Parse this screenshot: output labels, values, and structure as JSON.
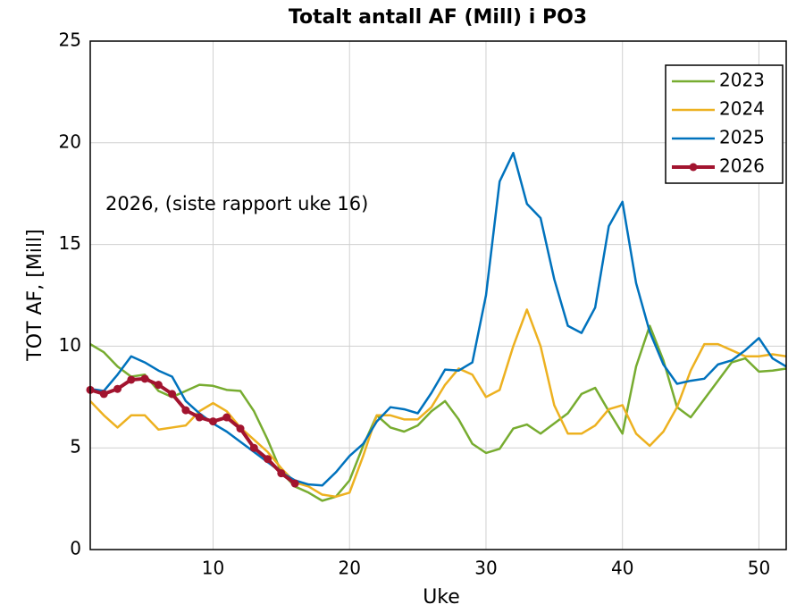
{
  "chart_data": {
    "type": "line",
    "title": "Totalt antall AF (Mill) i PO3",
    "x_label": "Uke",
    "y_label": "TOT AF, [Mill]",
    "annotation": "2026, (siste rapport uke 16)",
    "x": [
      1,
      2,
      3,
      4,
      5,
      6,
      7,
      8,
      9,
      10,
      11,
      12,
      13,
      14,
      15,
      16,
      17,
      18,
      19,
      20,
      21,
      22,
      23,
      24,
      25,
      26,
      27,
      28,
      29,
      30,
      31,
      32,
      33,
      34,
      35,
      36,
      37,
      38,
      39,
      40,
      41,
      42,
      43,
      44,
      45,
      46,
      47,
      48,
      49,
      50,
      51,
      52
    ],
    "series": [
      {
        "name": "2023",
        "color": "#77ac30",
        "values": [
          10.1,
          9.7,
          9.0,
          8.5,
          8.6,
          7.8,
          7.5,
          7.8,
          8.1,
          8.05,
          7.85,
          7.8,
          6.8,
          5.4,
          3.8,
          3.1,
          2.8,
          2.4,
          2.6,
          3.4,
          5.1,
          6.6,
          6.0,
          5.8,
          6.1,
          6.8,
          7.3,
          6.4,
          5.2,
          4.75,
          4.95,
          5.95,
          6.15,
          5.7,
          6.2,
          6.7,
          7.65,
          7.95,
          6.8,
          5.7,
          9.0,
          11.0,
          9.3,
          7.0,
          6.5,
          7.4,
          8.3,
          9.2,
          9.4,
          8.75,
          8.8,
          8.9
        ]
      },
      {
        "name": "2024",
        "color": "#edb120",
        "values": [
          7.3,
          6.6,
          6.0,
          6.6,
          6.6,
          5.9,
          6.0,
          6.1,
          6.8,
          7.2,
          6.8,
          6.0,
          5.4,
          4.8,
          4.0,
          3.3,
          3.1,
          2.7,
          2.6,
          2.8,
          4.6,
          6.6,
          6.6,
          6.4,
          6.4,
          7.0,
          8.1,
          8.9,
          8.6,
          7.5,
          7.85,
          10.0,
          11.8,
          10.0,
          7.1,
          5.7,
          5.7,
          6.1,
          6.9,
          7.1,
          5.7,
          5.1,
          5.8,
          7.0,
          8.8,
          10.1,
          10.1,
          9.8,
          9.5,
          9.5,
          9.6,
          9.5
        ]
      },
      {
        "name": "2025",
        "color": "#0072bd",
        "values": [
          7.9,
          7.8,
          8.6,
          9.5,
          9.2,
          8.8,
          8.5,
          7.3,
          6.7,
          6.2,
          5.8,
          5.3,
          4.8,
          4.3,
          3.8,
          3.4,
          3.2,
          3.15,
          3.8,
          4.6,
          5.2,
          6.3,
          7.0,
          6.9,
          6.7,
          7.7,
          8.85,
          8.8,
          9.2,
          12.5,
          18.1,
          19.5,
          17.0,
          16.3,
          13.3,
          11.0,
          10.65,
          11.9,
          15.9,
          17.1,
          13.1,
          10.7,
          9.1,
          8.15,
          8.3,
          8.4,
          9.1,
          9.3,
          9.8,
          10.4,
          9.4,
          9.0
        ]
      },
      {
        "name": "2026",
        "color": "#a2142f",
        "markers": true,
        "values": [
          7.85,
          7.65,
          7.9,
          8.35,
          8.4,
          8.1,
          7.65,
          6.85,
          6.5,
          6.3,
          6.5,
          5.95,
          5.0,
          4.45,
          3.75,
          3.25,
          null,
          null,
          null,
          null,
          null,
          null,
          null,
          null,
          null,
          null,
          null,
          null,
          null,
          null,
          null,
          null,
          null,
          null,
          null,
          null,
          null,
          null,
          null,
          null,
          null,
          null,
          null,
          null,
          null,
          null,
          null,
          null,
          null,
          null,
          null,
          null
        ]
      }
    ],
    "xlim": [
      1,
      52
    ],
    "xticks": [
      10,
      20,
      30,
      40,
      50
    ],
    "ylim": [
      0,
      25
    ],
    "yticks": [
      0,
      5,
      10,
      15,
      20,
      25
    ],
    "grid": true,
    "legend": "upper right"
  }
}
